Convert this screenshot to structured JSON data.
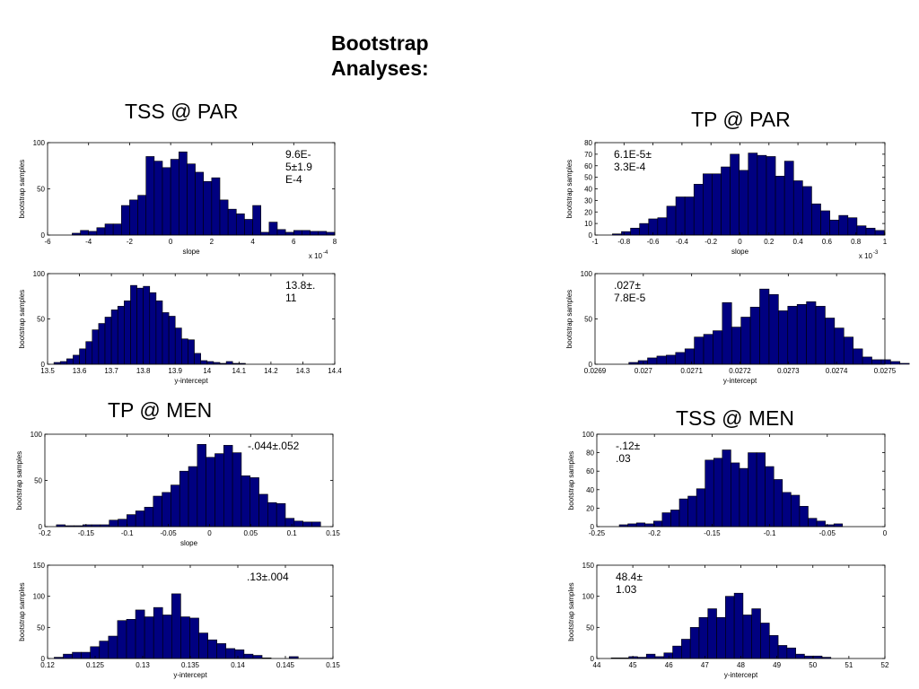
{
  "title_line1": "Bootstrap",
  "title_line2": "Analyses:",
  "sections": {
    "tss_par": "TSS @ PAR",
    "tp_par": "TP @ PAR",
    "tp_men": "TP @ MEN",
    "tss_men": "TSS @ MEN"
  },
  "colors": {
    "bar_fill": "#000080",
    "bar_edge": "#000000",
    "axis": "#000000"
  },
  "chart_data": [
    {
      "id": "tss-par-slope",
      "type": "bar",
      "ylabel": "bootstrap samples",
      "xlabel": "slope",
      "xlim": [
        -6,
        8
      ],
      "ylim": [
        0,
        100
      ],
      "xticks": [
        -6,
        -4,
        -2,
        0,
        2,
        4,
        6,
        8
      ],
      "yticks": [
        0,
        50,
        100
      ],
      "xtick_labels": [
        "-6",
        "-4",
        "-2",
        "0",
        "2",
        "4",
        "6",
        "8"
      ],
      "ytick_labels": [
        "0",
        "50",
        "100"
      ],
      "exponent": "x 10",
      "exponent_power": "-4",
      "annotation": [
        "9.6E-",
        "5±1.9",
        "E-4"
      ],
      "bin_start": -4.8,
      "bin_width": 0.4,
      "values": [
        2,
        5,
        4,
        8,
        12,
        12,
        32,
        38,
        43,
        85,
        80,
        73,
        82,
        90,
        77,
        68,
        58,
        62,
        38,
        28,
        23,
        17,
        32,
        3,
        14,
        6,
        3,
        5,
        5,
        4,
        4,
        3
      ]
    },
    {
      "id": "tss-par-intercept",
      "type": "bar",
      "ylabel": "bootstrap samples",
      "xlabel": "y-intercept",
      "xlim": [
        13.5,
        14.4
      ],
      "ylim": [
        0,
        100
      ],
      "xticks": [
        13.5,
        13.6,
        13.7,
        13.8,
        13.9,
        14,
        14.1,
        14.2,
        14.3,
        14.4
      ],
      "yticks": [
        0,
        50,
        100
      ],
      "xtick_labels": [
        "13.5",
        "13.6",
        "13.7",
        "13.8",
        "13.9",
        "14",
        "14.1",
        "14.2",
        "14.3",
        "14.4"
      ],
      "ytick_labels": [
        "0",
        "50",
        "100"
      ],
      "annotation": [
        "13.8±.",
        "11"
      ],
      "bin_start": 13.52,
      "bin_width": 0.02,
      "values": [
        2,
        3,
        6,
        10,
        17,
        25,
        38,
        45,
        52,
        60,
        64,
        70,
        87,
        84,
        86,
        79,
        70,
        57,
        53,
        40,
        28,
        27,
        12,
        4,
        3,
        2,
        1,
        3,
        1,
        1
      ]
    },
    {
      "id": "tp-par-slope",
      "type": "bar",
      "ylabel": "bootstrap samples",
      "xlabel": "slope",
      "xlim": [
        -1,
        1
      ],
      "ylim": [
        0,
        80
      ],
      "xticks": [
        -1,
        -0.8,
        -0.6,
        -0.4,
        -0.2,
        0,
        0.2,
        0.4,
        0.6,
        0.8,
        1
      ],
      "yticks": [
        0,
        10,
        20,
        30,
        40,
        50,
        60,
        70,
        80
      ],
      "xtick_labels": [
        "-1",
        "-0.8",
        "-0.6",
        "-0.4",
        "-0.2",
        "0",
        "0.2",
        "0.4",
        "0.6",
        "0.8",
        "1"
      ],
      "ytick_labels": [
        "0",
        "10",
        "20",
        "30",
        "40",
        "50",
        "60",
        "70",
        "80"
      ],
      "exponent": "x 10",
      "exponent_power": "-3",
      "annotation": [
        "6.1E-5±",
        "3.3E-4"
      ],
      "bin_start": -0.88,
      "bin_width": 0.0625,
      "values": [
        1,
        3,
        6,
        10,
        14,
        15,
        25,
        33,
        33,
        44,
        53,
        53,
        59,
        70,
        56,
        71,
        69,
        68,
        51,
        64,
        47,
        42,
        27,
        21,
        13,
        17,
        15,
        8,
        6,
        4
      ]
    },
    {
      "id": "tp-par-intercept",
      "type": "bar",
      "ylabel": "bootstrap samples",
      "xlabel": "y-intercept",
      "xlim": [
        0.0269,
        0.0275
      ],
      "ylim": [
        0,
        100
      ],
      "xticks": [
        0.0269,
        0.027,
        0.0271,
        0.0272,
        0.0273,
        0.0274,
        0.0275
      ],
      "yticks": [
        0,
        50,
        100
      ],
      "xtick_labels": [
        "0.0269",
        "0.027",
        "0.0271",
        "0.0272",
        "0.0273",
        "0.0274",
        "0.0275"
      ],
      "ytick_labels": [
        "0",
        "50",
        "100"
      ],
      "annotation": [
        ".027±",
        "7.8E-5"
      ],
      "bin_start": 0.02697,
      "bin_width": 1.935e-05,
      "values": [
        2,
        4,
        7,
        9,
        10,
        13,
        17,
        30,
        33,
        37,
        68,
        41,
        52,
        63,
        83,
        77,
        59,
        64,
        66,
        69,
        64,
        51,
        40,
        30,
        17,
        8,
        5,
        5,
        3,
        1
      ]
    },
    {
      "id": "tp-men-slope",
      "type": "bar",
      "ylabel": "bootstrap samples",
      "xlabel": "slope",
      "xlim": [
        -0.2,
        0.15
      ],
      "ylim": [
        0,
        100
      ],
      "xticks": [
        -0.2,
        -0.15,
        -0.1,
        -0.05,
        0,
        0.05,
        0.1,
        0.15
      ],
      "yticks": [
        0,
        50,
        100
      ],
      "xtick_labels": [
        "-0.2",
        "-0.15",
        "-0.1",
        "-0.05",
        "0",
        "0.05",
        "0.1",
        "0.15"
      ],
      "ytick_labels": [
        "0",
        "50",
        "100"
      ],
      "annotation": [
        "-.044±.052"
      ],
      "bin_start": -0.186,
      "bin_width": 0.0107,
      "values": [
        2,
        1,
        1,
        2,
        2,
        2,
        7,
        8,
        13,
        17,
        21,
        33,
        37,
        45,
        60,
        65,
        89,
        75,
        79,
        88,
        80,
        55,
        53,
        35,
        26,
        25,
        9,
        6,
        5,
        5
      ]
    },
    {
      "id": "tp-men-intercept",
      "type": "bar",
      "ylabel": "bootstrap samples",
      "xlabel": "y-intercept",
      "xlim": [
        0.12,
        0.15
      ],
      "ylim": [
        0,
        150
      ],
      "xticks": [
        0.12,
        0.125,
        0.13,
        0.135,
        0.14,
        0.145,
        0.15
      ],
      "yticks": [
        0,
        50,
        100,
        150
      ],
      "xtick_labels": [
        "0.12",
        "0.125",
        "0.13",
        "0.135",
        "0.14",
        "0.145",
        "0.15"
      ],
      "ytick_labels": [
        "0",
        "50",
        "100",
        "150"
      ],
      "annotation": [
        ".13±.004"
      ],
      "bin_start": 0.1207,
      "bin_width": 0.00095,
      "values": [
        2,
        7,
        10,
        10,
        19,
        28,
        36,
        61,
        63,
        78,
        67,
        82,
        70,
        104,
        67,
        65,
        41,
        30,
        24,
        16,
        14,
        7,
        5,
        1,
        0,
        0,
        3,
        0,
        0,
        0
      ]
    },
    {
      "id": "tss-men-slope",
      "type": "bar",
      "ylabel": "bootstrap samples",
      "xlabel": "",
      "xlim": [
        -0.25,
        0
      ],
      "ylim": [
        0,
        100
      ],
      "xticks": [
        -0.25,
        -0.2,
        -0.15,
        -0.1,
        -0.05,
        0
      ],
      "yticks": [
        0,
        20,
        40,
        60,
        80,
        100
      ],
      "xtick_labels": [
        "-0.25",
        "-0.2",
        "-0.15",
        "-0.1",
        "-0.05",
        "0"
      ],
      "ytick_labels": [
        "0",
        "20",
        "40",
        "60",
        "80",
        "100"
      ],
      "annotation": [
        "-.12±",
        ".03"
      ],
      "bin_start": -0.2305,
      "bin_width": 0.00745,
      "values": [
        2,
        3,
        4,
        3,
        6,
        15,
        18,
        30,
        33,
        41,
        72,
        74,
        83,
        69,
        63,
        80,
        80,
        65,
        51,
        37,
        34,
        22,
        9,
        6,
        2,
        3,
        0,
        0,
        0,
        0
      ]
    },
    {
      "id": "tss-men-intercept",
      "type": "bar",
      "ylabel": "bootstrap samples",
      "xlabel": "y-intercept",
      "xlim": [
        44,
        52
      ],
      "ylim": [
        0,
        150
      ],
      "xticks": [
        44,
        45,
        46,
        47,
        48,
        49,
        50,
        51,
        52
      ],
      "yticks": [
        0,
        50,
        100,
        150
      ],
      "xtick_labels": [
        "44",
        "45",
        "46",
        "47",
        "48",
        "49",
        "50",
        "51",
        "52"
      ],
      "ytick_labels": [
        "0",
        "50",
        "100",
        "150"
      ],
      "annotation": [
        "48.4±",
        "1.03"
      ],
      "bin_start": 44.4,
      "bin_width": 0.244,
      "values": [
        1,
        1,
        3,
        2,
        7,
        3,
        9,
        20,
        31,
        50,
        66,
        80,
        66,
        100,
        105,
        70,
        80,
        57,
        37,
        21,
        17,
        7,
        4,
        4,
        2,
        0,
        0,
        0,
        0,
        0
      ]
    }
  ]
}
